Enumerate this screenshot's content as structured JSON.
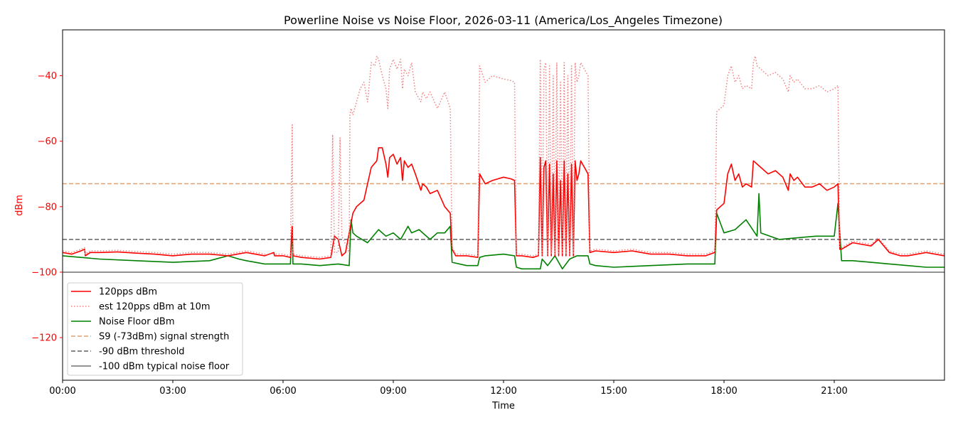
{
  "chart_data": {
    "type": "line",
    "title": "Powerline Noise vs Noise Floor, 2026-03-11 (America/Los_Angeles Timezone)",
    "xlabel": "Time",
    "ylabel": "dBm",
    "x_unit": "hours since 00:00 on 2026-03-11",
    "xlim": [
      0,
      24
    ],
    "ylim": [
      -133,
      -26
    ],
    "x_ticks": [
      {
        "value": 0,
        "label": "00:00"
      },
      {
        "value": 3,
        "label": "03:00"
      },
      {
        "value": 6,
        "label": "06:00"
      },
      {
        "value": 9,
        "label": "09:00"
      },
      {
        "value": 12,
        "label": "12:00"
      },
      {
        "value": 15,
        "label": "15:00"
      },
      {
        "value": 18,
        "label": "18:00"
      },
      {
        "value": 21,
        "label": "21:00"
      }
    ],
    "y_ticks": [
      {
        "value": -40,
        "label": "−40"
      },
      {
        "value": -60,
        "label": "−60"
      },
      {
        "value": -80,
        "label": "−80"
      },
      {
        "value": -100,
        "label": "−100"
      },
      {
        "value": -120,
        "label": "−120"
      }
    ],
    "ylabel_color": "#ff0000",
    "grid": false,
    "legend_position": "lower-left",
    "series": [
      {
        "name": "120pps dBm",
        "color": "#ff0000",
        "style": "solid",
        "x": [
          0,
          0.25,
          0.5,
          0.6,
          0.62,
          0.75,
          1,
          1.5,
          2,
          2.5,
          3,
          3.5,
          4,
          4.5,
          5,
          5.5,
          5.75,
          5.77,
          6,
          6.2,
          6.25,
          6.27,
          6.5,
          7,
          7.3,
          7.4,
          7.5,
          7.6,
          7.7,
          7.85,
          7.9,
          8.0,
          8.2,
          8.4,
          8.55,
          8.6,
          8.7,
          8.8,
          8.85,
          8.9,
          9.0,
          9.1,
          9.2,
          9.25,
          9.3,
          9.4,
          9.5,
          9.6,
          9.75,
          9.8,
          9.9,
          10.0,
          10.2,
          10.4,
          10.55,
          10.6,
          10.7,
          11.0,
          11.3,
          11.35,
          11.5,
          11.7,
          12.0,
          12.2,
          12.3,
          12.35,
          12.5,
          12.8,
          12.95,
          13.0,
          13.05,
          13.1,
          13.15,
          13.2,
          13.25,
          13.3,
          13.35,
          13.4,
          13.45,
          13.5,
          13.55,
          13.6,
          13.65,
          13.7,
          13.75,
          13.8,
          13.85,
          13.9,
          13.95,
          14.0,
          14.05,
          14.1,
          14.2,
          14.3,
          14.35,
          14.5,
          15,
          15.5,
          16,
          16.5,
          17,
          17.5,
          17.75,
          17.8,
          17.9,
          18.0,
          18.1,
          18.2,
          18.3,
          18.4,
          18.5,
          18.6,
          18.75,
          18.8,
          18.9,
          19.0,
          19.2,
          19.4,
          19.6,
          19.75,
          19.8,
          19.9,
          20.0,
          20.2,
          20.4,
          20.6,
          20.8,
          21.0,
          21.1,
          21.15,
          21.2,
          21.5,
          22,
          22.2,
          22.5,
          22.8,
          23,
          23.5,
          24
        ],
        "y": [
          -94,
          -94.5,
          -93.5,
          -93,
          -95,
          -94,
          -94,
          -93.8,
          -94.2,
          -94.5,
          -95,
          -94.5,
          -94.5,
          -95,
          -94,
          -95,
          -94,
          -95,
          -95,
          -95.5,
          -86,
          -95,
          -95.5,
          -96,
          -95.5,
          -89,
          -90,
          -95,
          -94,
          -85,
          -82,
          -80,
          -78,
          -68,
          -66,
          -62,
          -62,
          -67,
          -71,
          -65,
          -64,
          -67,
          -65,
          -72,
          -66,
          -68,
          -67,
          -70,
          -75,
          -73,
          -74,
          -76,
          -75,
          -80,
          -82,
          -93,
          -95,
          -95,
          -95.5,
          -70,
          -73,
          -72,
          -71,
          -71.5,
          -72,
          -95,
          -95,
          -95.5,
          -95,
          -65,
          -95,
          -68,
          -66,
          -95,
          -67,
          -95,
          -70,
          -95,
          -66,
          -95,
          -72,
          -95,
          -66,
          -95,
          -70,
          -95,
          -67,
          -95,
          -66,
          -72,
          -70,
          -66,
          -68,
          -70,
          -94,
          -93.5,
          -94,
          -93.5,
          -94.5,
          -94.5,
          -95,
          -95,
          -94,
          -81,
          -80,
          -79,
          -70,
          -67,
          -72,
          -70,
          -74,
          -73,
          -74,
          -66,
          -67,
          -68,
          -70,
          -69,
          -71,
          -75,
          -70,
          -72,
          -71,
          -74,
          -74,
          -73,
          -75,
          -74,
          -73,
          -93,
          -93,
          -91,
          -92,
          -90,
          -94,
          -95,
          -95,
          -94,
          -95
        ]
      },
      {
        "name": "est 120pps dBm at 10m",
        "color": "#f08080",
        "style": "dotted",
        "x": [
          0,
          0.25,
          0.5,
          0.6,
          0.62,
          0.75,
          1,
          1.5,
          2,
          2.5,
          3,
          3.5,
          4,
          4.5,
          5,
          5.5,
          6,
          6.2,
          6.25,
          6.27,
          6.5,
          7,
          7.3,
          7.35,
          7.4,
          7.5,
          7.55,
          7.6,
          7.8,
          7.82,
          7.85,
          7.9,
          8.0,
          8.1,
          8.2,
          8.3,
          8.4,
          8.5,
          8.55,
          8.6,
          8.7,
          8.8,
          8.85,
          8.9,
          9.0,
          9.1,
          9.2,
          9.25,
          9.3,
          9.4,
          9.5,
          9.6,
          9.75,
          9.8,
          9.9,
          10.0,
          10.2,
          10.4,
          10.55,
          10.6,
          10.7,
          11.0,
          11.3,
          11.35,
          11.5,
          11.7,
          12.0,
          12.2,
          12.3,
          12.35,
          12.5,
          12.8,
          12.95,
          13.0,
          13.05,
          13.1,
          13.15,
          13.2,
          13.25,
          13.3,
          13.35,
          13.4,
          13.45,
          13.5,
          13.55,
          13.6,
          13.65,
          13.7,
          13.75,
          13.8,
          13.85,
          13.9,
          13.95,
          14.0,
          14.05,
          14.1,
          14.2,
          14.3,
          14.35,
          14.5,
          15,
          15.5,
          16,
          16.5,
          17,
          17.5,
          17.75,
          17.8,
          17.9,
          18.0,
          18.1,
          18.2,
          18.3,
          18.4,
          18.5,
          18.6,
          18.75,
          18.8,
          18.85,
          18.9,
          19.0,
          19.2,
          19.4,
          19.6,
          19.75,
          19.8,
          19.9,
          20.0,
          20.2,
          20.4,
          20.6,
          20.8,
          21.0,
          21.1,
          21.15,
          21.2,
          21.5,
          22,
          22.2,
          22.5,
          22.8,
          23,
          23.5,
          24
        ],
        "y": [
          -93.5,
          -94,
          -93,
          -92.5,
          -94.5,
          -93.5,
          -93.5,
          -93.3,
          -93.7,
          -94,
          -94.5,
          -94,
          -94,
          -94.5,
          -93.5,
          -94.5,
          -94.5,
          -95,
          -55,
          -94.5,
          -95,
          -95.5,
          -95,
          -58,
          -94,
          -94,
          -59,
          -89,
          -94,
          -52,
          -50,
          -52,
          -48,
          -44,
          -42,
          -48,
          -36,
          -37,
          -34,
          -35,
          -40,
          -44,
          -50,
          -38,
          -35,
          -38,
          -35,
          -44,
          -38,
          -40,
          -36,
          -45,
          -48,
          -45,
          -47,
          -45,
          -50,
          -45,
          -50,
          -92.5,
          -94.5,
          -94.5,
          -95,
          -37,
          -42,
          -40,
          -41,
          -41.5,
          -42,
          -94.5,
          -94.5,
          -95,
          -94.5,
          -35,
          -94.5,
          -38,
          -36,
          -94.5,
          -37,
          -94.5,
          -40,
          -94.5,
          -36,
          -94.5,
          -42,
          -94.5,
          -36,
          -94.5,
          -40,
          -94.5,
          -37,
          -94.5,
          -36,
          -42,
          -40,
          -36,
          -38,
          -40,
          -93.5,
          -93,
          -93.5,
          -93,
          -94,
          -94,
          -94.5,
          -94.5,
          -93.5,
          -51,
          -50,
          -49,
          -40,
          -37,
          -42,
          -40,
          -44,
          -43,
          -44,
          -36,
          -34,
          -37,
          -38,
          -40,
          -39,
          -41,
          -45,
          -40,
          -42,
          -41,
          -44,
          -44,
          -43,
          -45,
          -44,
          -43,
          -92.5,
          -92.5,
          -90.5,
          -91.5,
          -89.5,
          -93.5,
          -94.5,
          -94.5,
          -93.5,
          -94.5
        ]
      },
      {
        "name": "Noise Floor dBm",
        "color": "#008000",
        "style": "solid",
        "x": [
          0,
          0.5,
          1,
          2,
          3,
          4,
          4.5,
          4.8,
          5,
          5.5,
          6,
          6.2,
          6.25,
          6.27,
          6.5,
          7,
          7.5,
          7.8,
          7.85,
          7.9,
          8.0,
          8.3,
          8.6,
          8.8,
          9.0,
          9.2,
          9.4,
          9.5,
          9.7,
          10.0,
          10.2,
          10.4,
          10.55,
          10.6,
          11,
          11.3,
          11.35,
          11.5,
          12,
          12.3,
          12.35,
          12.5,
          13,
          13.05,
          13.2,
          13.4,
          13.6,
          13.8,
          14,
          14.3,
          14.35,
          14.5,
          15,
          16,
          17,
          17.75,
          17.8,
          18.0,
          18.3,
          18.6,
          18.9,
          18.95,
          19.0,
          19.5,
          20,
          20.5,
          21,
          21.1,
          21.15,
          21.2,
          21.5,
          22,
          22.5,
          23,
          23.5,
          24
        ],
        "y": [
          -95,
          -95.5,
          -96,
          -96.5,
          -97,
          -96.5,
          -95,
          -96,
          -96.5,
          -97.5,
          -97.5,
          -97.5,
          -86,
          -97.5,
          -97.5,
          -98,
          -97.5,
          -98,
          -84,
          -88,
          -89,
          -91,
          -87,
          -89,
          -88,
          -90,
          -86,
          -88,
          -87,
          -90,
          -88,
          -88,
          -86,
          -97,
          -98,
          -98,
          -95.5,
          -95,
          -94.5,
          -95,
          -98.5,
          -99,
          -99,
          -96,
          -98,
          -95,
          -99,
          -96,
          -95,
          -95,
          -97.5,
          -98,
          -98.5,
          -98,
          -97.5,
          -97.5,
          -82,
          -88,
          -87,
          -84,
          -89,
          -76,
          -88,
          -90,
          -89.5,
          -89,
          -89,
          -79,
          -88,
          -96.5,
          -96.5,
          -97,
          -97.5,
          -98,
          -98.5,
          -98.5
        ]
      }
    ],
    "reference_lines": [
      {
        "name": "S9 (-73dBm) signal strength",
        "y": -73,
        "color": "#e0a070",
        "style": "dashed"
      },
      {
        "name": "-90 dBm threshold",
        "y": -90,
        "color": "#606060",
        "style": "dashed"
      },
      {
        "name": "-100 dBm typical noise floor",
        "y": -100,
        "color": "#707070",
        "style": "solid"
      }
    ]
  }
}
